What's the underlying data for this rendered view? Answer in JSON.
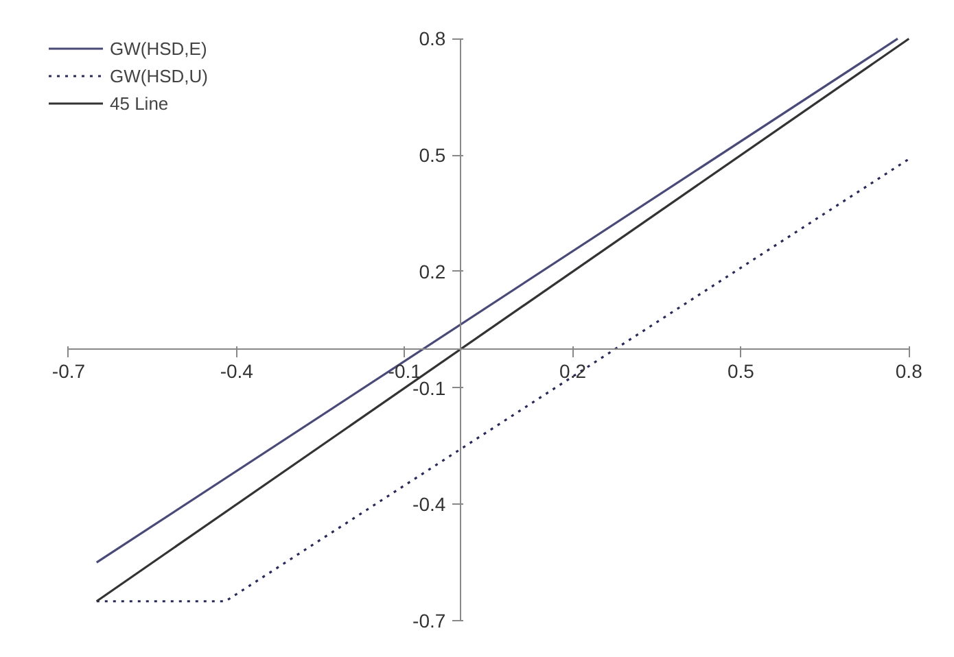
{
  "chart_data": {
    "type": "line",
    "xlim": [
      -0.7,
      0.8
    ],
    "ylim": [
      -0.7,
      0.8
    ],
    "xticks": [
      -0.7,
      -0.4,
      -0.1,
      0.2,
      0.5,
      0.8
    ],
    "yticks": [
      -0.7,
      -0.4,
      -0.1,
      0.2,
      0.5,
      0.8
    ],
    "grid": false,
    "legend": "top left",
    "marker": "none",
    "series": [
      {
        "name": "GW(HSD,E)",
        "color": "#4a4a78",
        "x": [
          -0.65,
          0.78
        ],
        "values": [
          -0.55,
          0.8
        ],
        "line_style": "solid"
      },
      {
        "name": "GW(HSD,U)",
        "color": "#2a2a5a",
        "x": [
          -0.65,
          -0.42,
          0.8
        ],
        "values": [
          -0.65,
          -0.65,
          0.49
        ],
        "line_style": "dotted"
      },
      {
        "name": "45 Line",
        "color": "#333333",
        "x": [
          -0.65,
          0.8
        ],
        "values": [
          -0.65,
          0.8
        ],
        "line_style": "solid"
      }
    ]
  }
}
